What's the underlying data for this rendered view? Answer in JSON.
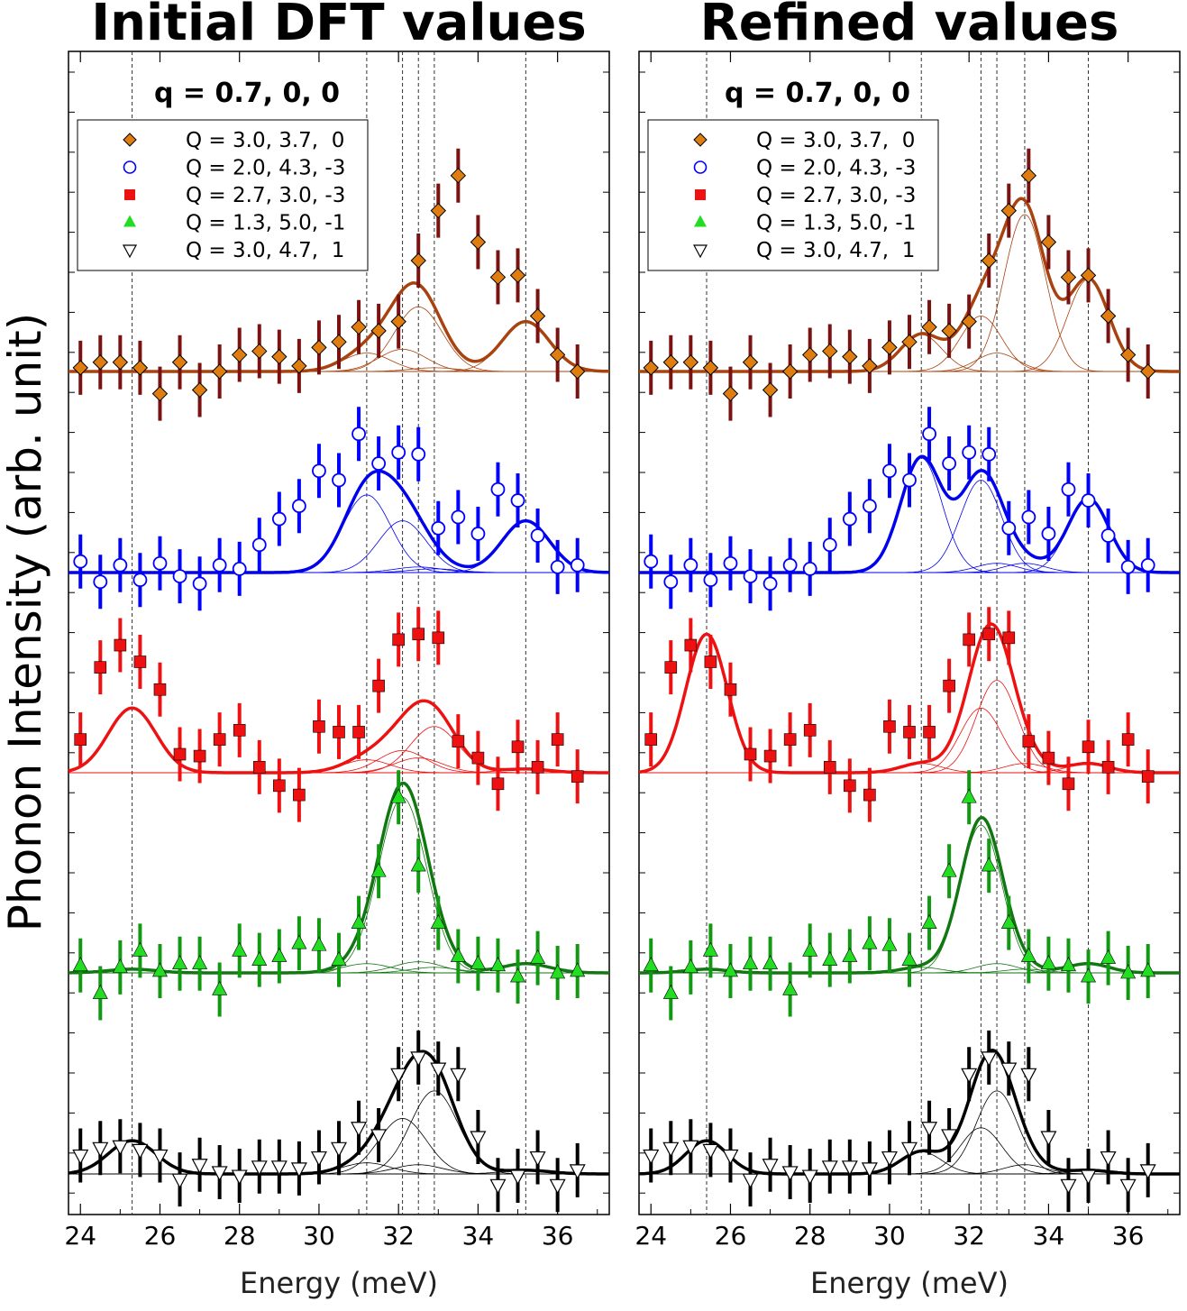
{
  "y_label": "Phonon Intensity (arb. unit)",
  "chart_data": [
    {
      "type": "scatter",
      "title": "Initial DFT values",
      "annotation": "q = 0.7, 0, 0",
      "xlabel": "Energy (meV)",
      "xlim": [
        23.7,
        37.3
      ],
      "xticks": [
        24,
        26,
        28,
        30,
        32,
        34,
        36
      ],
      "vlines": [
        25.3,
        31.2,
        32.1,
        32.5,
        32.9,
        35.2
      ],
      "series": [
        {
          "name": "Q = 3.0, 3.7,  0",
          "marker": "diamond",
          "color": "#e07d10",
          "ecolor": "#7a1212",
          "lcolor": "#a8420e",
          "x": [
            24,
            24.5,
            25,
            25.5,
            26,
            26.5,
            27,
            27.5,
            28,
            28.5,
            29,
            29.5,
            30,
            30.5,
            31,
            31.5,
            32,
            32.5,
            33,
            33.5,
            34,
            34.5,
            35,
            35.5,
            36,
            36.5
          ],
          "y": [
            0.02,
            0.05,
            0.05,
            0.02,
            -0.12,
            0.05,
            -0.1,
            0,
            0.09,
            0.11,
            0.08,
            0.03,
            0.13,
            0.16,
            0.24,
            0.22,
            0.27,
            0.6,
            0.87,
            1.06,
            0.7,
            0.51,
            0.52,
            0.3,
            0.09,
            0
          ]
        },
        {
          "name": "Q = 2.0, 4.3, -3",
          "marker": "circle",
          "color": "#ffffff",
          "ecolor": "#0000ff",
          "lcolor": "#0000ee",
          "x": [
            24,
            24.5,
            25,
            25.5,
            26,
            26.5,
            27,
            27.5,
            28,
            28.5,
            29,
            29.5,
            30,
            30.5,
            31,
            31.5,
            32,
            32.5,
            33,
            33.5,
            34,
            34.5,
            35,
            35.5,
            36,
            36.5
          ],
          "y": [
            0.06,
            -0.05,
            0.04,
            -0.04,
            0.05,
            -0.02,
            -0.06,
            0.04,
            0.02,
            0.15,
            0.29,
            0.36,
            0.55,
            0.5,
            0.75,
            0.59,
            0.65,
            0.64,
            0.24,
            0.3,
            0.21,
            0.45,
            0.39,
            0.2,
            0.03,
            0.04
          ]
        },
        {
          "name": "Q = 2.7, 3.0, -3",
          "marker": "square",
          "color": "#ee1111",
          "ecolor": "#ee1111",
          "lcolor": "#ee1111",
          "x": [
            24,
            24.5,
            25,
            25.5,
            26,
            26.5,
            27,
            27.5,
            28,
            28.5,
            29,
            29.5,
            30,
            30.5,
            31,
            31.5,
            32,
            32.5,
            33,
            33.5,
            34,
            34.5,
            35,
            35.5,
            36,
            36.5
          ],
          "y": [
            0.18,
            0.57,
            0.69,
            0.6,
            0.45,
            0.1,
            0.09,
            0.18,
            0.23,
            0.03,
            -0.07,
            -0.12,
            0.25,
            0.22,
            0.22,
            0.47,
            0.72,
            0.75,
            0.73,
            0.17,
            0.08,
            -0.06,
            0.14,
            0.03,
            0.18,
            -0.02
          ]
        },
        {
          "name": "Q = 1.3, 5.0, -1",
          "marker": "triangle-up",
          "color": "#22dd22",
          "ecolor": "#119911",
          "lcolor": "#117711",
          "x": [
            24,
            24.5,
            25,
            25.5,
            26,
            26.5,
            27,
            27.5,
            28,
            28.5,
            29,
            29.5,
            30,
            30.5,
            31,
            31.5,
            32,
            32.5,
            33,
            33.5,
            34,
            34.5,
            35,
            35.5,
            36,
            36.5
          ],
          "y": [
            0.04,
            -0.11,
            0.03,
            0.12,
            0.01,
            0.05,
            0.05,
            -0.09,
            0.12,
            0.07,
            0.09,
            0.16,
            0.15,
            0.07,
            0.27,
            0.55,
            0.95,
            0.58,
            0.27,
            0.09,
            0.05,
            0.04,
            -0.02,
            0.08,
            0,
            0.01
          ]
        },
        {
          "name": "Q = 3.0, 4.7,  1",
          "marker": "triangle-down",
          "color": "#ffffff",
          "ecolor": "#000000",
          "lcolor": "#000000",
          "x": [
            24,
            24.5,
            25,
            25.5,
            26,
            26.5,
            27,
            27.5,
            28,
            28.5,
            29,
            29.5,
            30,
            30.5,
            31,
            31.5,
            32,
            32.5,
            33,
            33.5,
            34,
            34.5,
            35,
            35.5,
            36,
            36.5
          ],
          "y": [
            0.1,
            0.14,
            0.15,
            0.13,
            0.1,
            -0.03,
            0.05,
            0.01,
            -0.01,
            0.04,
            0.04,
            0.03,
            0.09,
            0.14,
            0.25,
            0.21,
            0.54,
            0.63,
            0.57,
            0.54,
            0.2,
            -0.06,
            -0.01,
            0.09,
            -0.06,
            0.02
          ]
        }
      ]
    },
    {
      "type": "scatter",
      "title": "Refined values",
      "annotation": "q = 0.7, 0, 0",
      "xlabel": "Energy (meV)",
      "xlim": [
        23.7,
        37.3
      ],
      "xticks": [
        24,
        26,
        28,
        30,
        32,
        34,
        36
      ],
      "vlines": [
        25.4,
        30.8,
        32.3,
        32.7,
        33.4,
        35.0
      ],
      "series": [
        {
          "name": "Q = 3.0, 3.7,  0",
          "marker": "diamond",
          "color": "#e07d10",
          "ecolor": "#7a1212",
          "lcolor": "#a8420e",
          "x": [
            24,
            24.5,
            25,
            25.5,
            26,
            26.5,
            27,
            27.5,
            28,
            28.5,
            29,
            29.5,
            30,
            30.5,
            31,
            31.5,
            32,
            32.5,
            33,
            33.5,
            34,
            34.5,
            35,
            35.5,
            36,
            36.5
          ],
          "y": [
            0.02,
            0.05,
            0.05,
            0.02,
            -0.12,
            0.05,
            -0.1,
            0,
            0.09,
            0.11,
            0.08,
            0.03,
            0.13,
            0.16,
            0.24,
            0.22,
            0.27,
            0.6,
            0.87,
            1.06,
            0.7,
            0.51,
            0.52,
            0.3,
            0.09,
            0
          ]
        },
        {
          "name": "Q = 2.0, 4.3, -3",
          "marker": "circle",
          "color": "#ffffff",
          "ecolor": "#0000ff",
          "lcolor": "#0000ee",
          "x": [
            24,
            24.5,
            25,
            25.5,
            26,
            26.5,
            27,
            27.5,
            28,
            28.5,
            29,
            29.5,
            30,
            30.5,
            31,
            31.5,
            32,
            32.5,
            33,
            33.5,
            34,
            34.5,
            35,
            35.5,
            36,
            36.5
          ],
          "y": [
            0.06,
            -0.05,
            0.04,
            -0.04,
            0.05,
            -0.02,
            -0.06,
            0.04,
            0.02,
            0.15,
            0.29,
            0.36,
            0.55,
            0.5,
            0.75,
            0.59,
            0.65,
            0.64,
            0.24,
            0.3,
            0.21,
            0.45,
            0.39,
            0.2,
            0.03,
            0.04
          ]
        },
        {
          "name": "Q = 2.7, 3.0, -3",
          "marker": "square",
          "color": "#ee1111",
          "ecolor": "#ee1111",
          "lcolor": "#ee1111",
          "x": [
            24,
            24.5,
            25,
            25.5,
            26,
            26.5,
            27,
            27.5,
            28,
            28.5,
            29,
            29.5,
            30,
            30.5,
            31,
            31.5,
            32,
            32.5,
            33,
            33.5,
            34,
            34.5,
            35,
            35.5,
            36,
            36.5
          ],
          "y": [
            0.18,
            0.57,
            0.69,
            0.6,
            0.45,
            0.1,
            0.09,
            0.18,
            0.23,
            0.03,
            -0.07,
            -0.12,
            0.25,
            0.22,
            0.22,
            0.47,
            0.72,
            0.75,
            0.73,
            0.17,
            0.08,
            -0.06,
            0.14,
            0.03,
            0.18,
            -0.02
          ]
        },
        {
          "name": "Q = 1.3, 5.0, -1",
          "marker": "triangle-up",
          "color": "#22dd22",
          "ecolor": "#119911",
          "lcolor": "#117711",
          "x": [
            24,
            24.5,
            25,
            25.5,
            26,
            26.5,
            27,
            27.5,
            28,
            28.5,
            29,
            29.5,
            30,
            30.5,
            31,
            31.5,
            32,
            32.5,
            33,
            33.5,
            34,
            34.5,
            35,
            35.5,
            36,
            36.5
          ],
          "y": [
            0.04,
            -0.11,
            0.03,
            0.12,
            0.01,
            0.05,
            0.05,
            -0.09,
            0.12,
            0.07,
            0.09,
            0.16,
            0.15,
            0.07,
            0.27,
            0.55,
            0.95,
            0.58,
            0.27,
            0.09,
            0.05,
            0.04,
            -0.02,
            0.08,
            0,
            0.01
          ]
        },
        {
          "name": "Q = 3.0, 4.7,  1",
          "marker": "triangle-down",
          "color": "#ffffff",
          "ecolor": "#000000",
          "lcolor": "#000000",
          "x": [
            24,
            24.5,
            25,
            25.5,
            26,
            26.5,
            27,
            27.5,
            28,
            28.5,
            29,
            29.5,
            30,
            30.5,
            31,
            31.5,
            32,
            32.5,
            33,
            33.5,
            34,
            34.5,
            35,
            35.5,
            36,
            36.5
          ],
          "y": [
            0.1,
            0.14,
            0.15,
            0.13,
            0.1,
            -0.03,
            0.05,
            0.01,
            -0.01,
            0.04,
            0.04,
            0.03,
            0.09,
            0.14,
            0.25,
            0.21,
            0.54,
            0.63,
            0.57,
            0.54,
            0.2,
            -0.06,
            -0.01,
            0.09,
            -0.06,
            0.02
          ]
        }
      ]
    }
  ]
}
